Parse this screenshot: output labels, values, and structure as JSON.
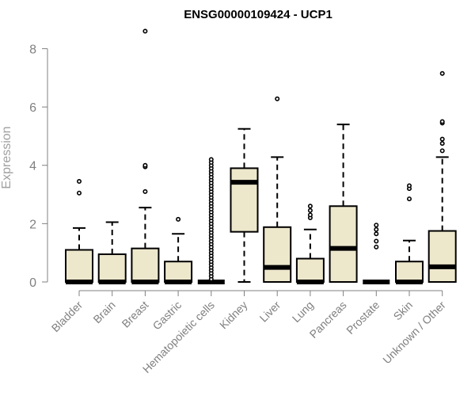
{
  "chart_data": {
    "type": "boxplot",
    "title": "ENSG00000109424 - UCP1",
    "xlabel": "",
    "ylabel": "Expression",
    "ylim": [
      0,
      8.8
    ],
    "yticks": [
      0,
      2,
      4,
      6,
      8
    ],
    "grid": false,
    "legend": "none",
    "colors": {
      "box_fill": "#ede7cc",
      "box_stroke": "#000000",
      "axis": "#808080",
      "label": "#808080"
    },
    "categories": [
      "Bladder",
      "Brain",
      "Breast",
      "Gastric",
      "Hematopoietic cells",
      "Kidney",
      "Liver",
      "Lung",
      "Pancreas",
      "Prostate",
      "Skin",
      "Unknown / Other"
    ],
    "boxes": [
      {
        "category": "Bladder",
        "q1": 0,
        "median": 0,
        "q3": 1.1,
        "whisker_low": 0,
        "whisker_high": 1.85,
        "outliers": [
          3.05,
          3.45
        ]
      },
      {
        "category": "Brain",
        "q1": 0,
        "median": 0,
        "q3": 0.95,
        "whisker_low": 0,
        "whisker_high": 2.05,
        "outliers": []
      },
      {
        "category": "Breast",
        "q1": 0,
        "median": 0,
        "q3": 1.15,
        "whisker_low": 0,
        "whisker_high": 2.55,
        "outliers": [
          3.1,
          3.95,
          4.0,
          8.6
        ]
      },
      {
        "category": "Gastric",
        "q1": 0,
        "median": 0,
        "q3": 0.7,
        "whisker_low": 0,
        "whisker_high": 1.65,
        "outliers": [
          2.15
        ]
      },
      {
        "category": "Hematopoietic cells",
        "q1": 0,
        "median": 0,
        "q3": 0,
        "whisker_low": 0,
        "whisker_high": 0,
        "outliers": [
          0.1,
          0.2,
          0.3,
          0.4,
          0.5,
          0.6,
          0.7,
          0.8,
          0.9,
          1.0,
          1.1,
          1.2,
          1.3,
          1.4,
          1.5,
          1.6,
          1.7,
          1.8,
          1.9,
          2.0,
          2.1,
          2.2,
          2.3,
          2.4,
          2.5,
          2.6,
          2.7,
          2.8,
          2.9,
          3.0,
          3.1,
          3.2,
          3.3,
          3.4,
          3.5,
          3.6,
          3.7,
          3.8,
          3.9,
          4.0,
          4.1,
          4.2
        ]
      },
      {
        "category": "Kidney",
        "q1": 1.72,
        "median": 3.42,
        "q3": 3.9,
        "whisker_low": 0,
        "whisker_high": 5.25,
        "outliers": []
      },
      {
        "category": "Liver",
        "q1": 0,
        "median": 0.5,
        "q3": 1.88,
        "whisker_low": 0,
        "whisker_high": 4.28,
        "outliers": [
          6.28
        ]
      },
      {
        "category": "Lung",
        "q1": 0,
        "median": 0,
        "q3": 0.8,
        "whisker_low": 0,
        "whisker_high": 1.8,
        "outliers": [
          2.2,
          2.3,
          2.45,
          2.6
        ]
      },
      {
        "category": "Pancreas",
        "q1": 0,
        "median": 1.15,
        "q3": 2.6,
        "whisker_low": 0,
        "whisker_high": 5.4,
        "outliers": []
      },
      {
        "category": "Prostate",
        "q1": 0,
        "median": 0,
        "q3": 0,
        "whisker_low": 0,
        "whisker_high": 0,
        "outliers": [
          1.2,
          1.4,
          1.65,
          1.8,
          1.95
        ]
      },
      {
        "category": "Skin",
        "q1": 0,
        "median": 0,
        "q3": 0.7,
        "whisker_low": 0,
        "whisker_high": 1.42,
        "outliers": [
          2.85,
          3.2,
          3.3
        ]
      },
      {
        "category": "Unknown / Other",
        "q1": 0,
        "median": 0.52,
        "q3": 1.75,
        "whisker_low": 0,
        "whisker_high": 4.28,
        "outliers": [
          4.5,
          4.75,
          4.9,
          5.45,
          5.5,
          7.15
        ]
      }
    ]
  }
}
